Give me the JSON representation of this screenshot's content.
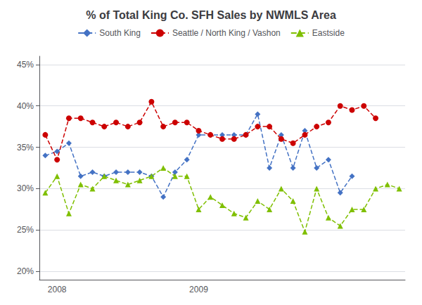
{
  "chart_data": {
    "type": "line",
    "title": "% of Total King Co. SFH Sales by NWMLS Area",
    "categories": [
      null,
      "2008",
      null,
      null,
      null,
      null,
      null,
      null,
      null,
      null,
      null,
      null,
      null,
      "2009",
      null,
      null,
      null,
      null,
      null,
      null,
      null,
      null,
      null,
      null,
      null,
      null,
      null,
      null,
      null,
      null,
      null
    ],
    "series": [
      {
        "name": "South King",
        "color": "#4472C4",
        "marker": "diamond",
        "line_style": "dashed",
        "values": [
          34.0,
          34.5,
          35.5,
          31.5,
          32.0,
          31.5,
          32.0,
          32.0,
          32.0,
          31.5,
          29.0,
          32.0,
          33.5,
          36.5,
          36.5,
          36.5,
          36.5,
          36.5,
          39.0,
          32.5,
          36.5,
          32.5,
          37.0,
          32.5,
          33.5,
          29.5,
          31.5,
          null,
          null,
          null,
          null
        ]
      },
      {
        "name": "Seattle / North King / Vashon",
        "color": "#CC0000",
        "marker": "circle",
        "line_style": "dashed",
        "values": [
          36.5,
          33.5,
          38.5,
          38.5,
          38.0,
          37.5,
          38.0,
          37.5,
          38.0,
          40.5,
          37.5,
          38.0,
          38.0,
          37.0,
          36.5,
          36.0,
          36.0,
          36.5,
          37.5,
          37.5,
          36.0,
          35.5,
          36.5,
          37.5,
          38.0,
          40.0,
          39.5,
          40.0,
          38.5,
          null,
          null
        ]
      },
      {
        "name": "Eastside",
        "color": "#7FBF00",
        "marker": "triangle",
        "line_style": "dashed",
        "values": [
          29.5,
          31.5,
          27.0,
          30.5,
          30.0,
          31.5,
          31.0,
          30.5,
          31.0,
          31.5,
          32.5,
          31.5,
          31.5,
          27.5,
          29.0,
          28.0,
          27.0,
          26.5,
          28.5,
          27.5,
          30.0,
          28.5,
          24.8,
          30.0,
          26.5,
          25.5,
          27.5,
          27.5,
          30.0,
          30.5,
          30.0
        ]
      }
    ],
    "ylim": [
      19,
      46
    ],
    "yticks": [
      {
        "value": 20,
        "label": "20%"
      },
      {
        "value": 25,
        "label": "25%"
      },
      {
        "value": 30,
        "label": "30%"
      },
      {
        "value": 35,
        "label": "35%"
      },
      {
        "value": 40,
        "label": "40%"
      },
      {
        "value": 45,
        "label": "45%"
      }
    ],
    "grid": true,
    "legend": "top"
  }
}
